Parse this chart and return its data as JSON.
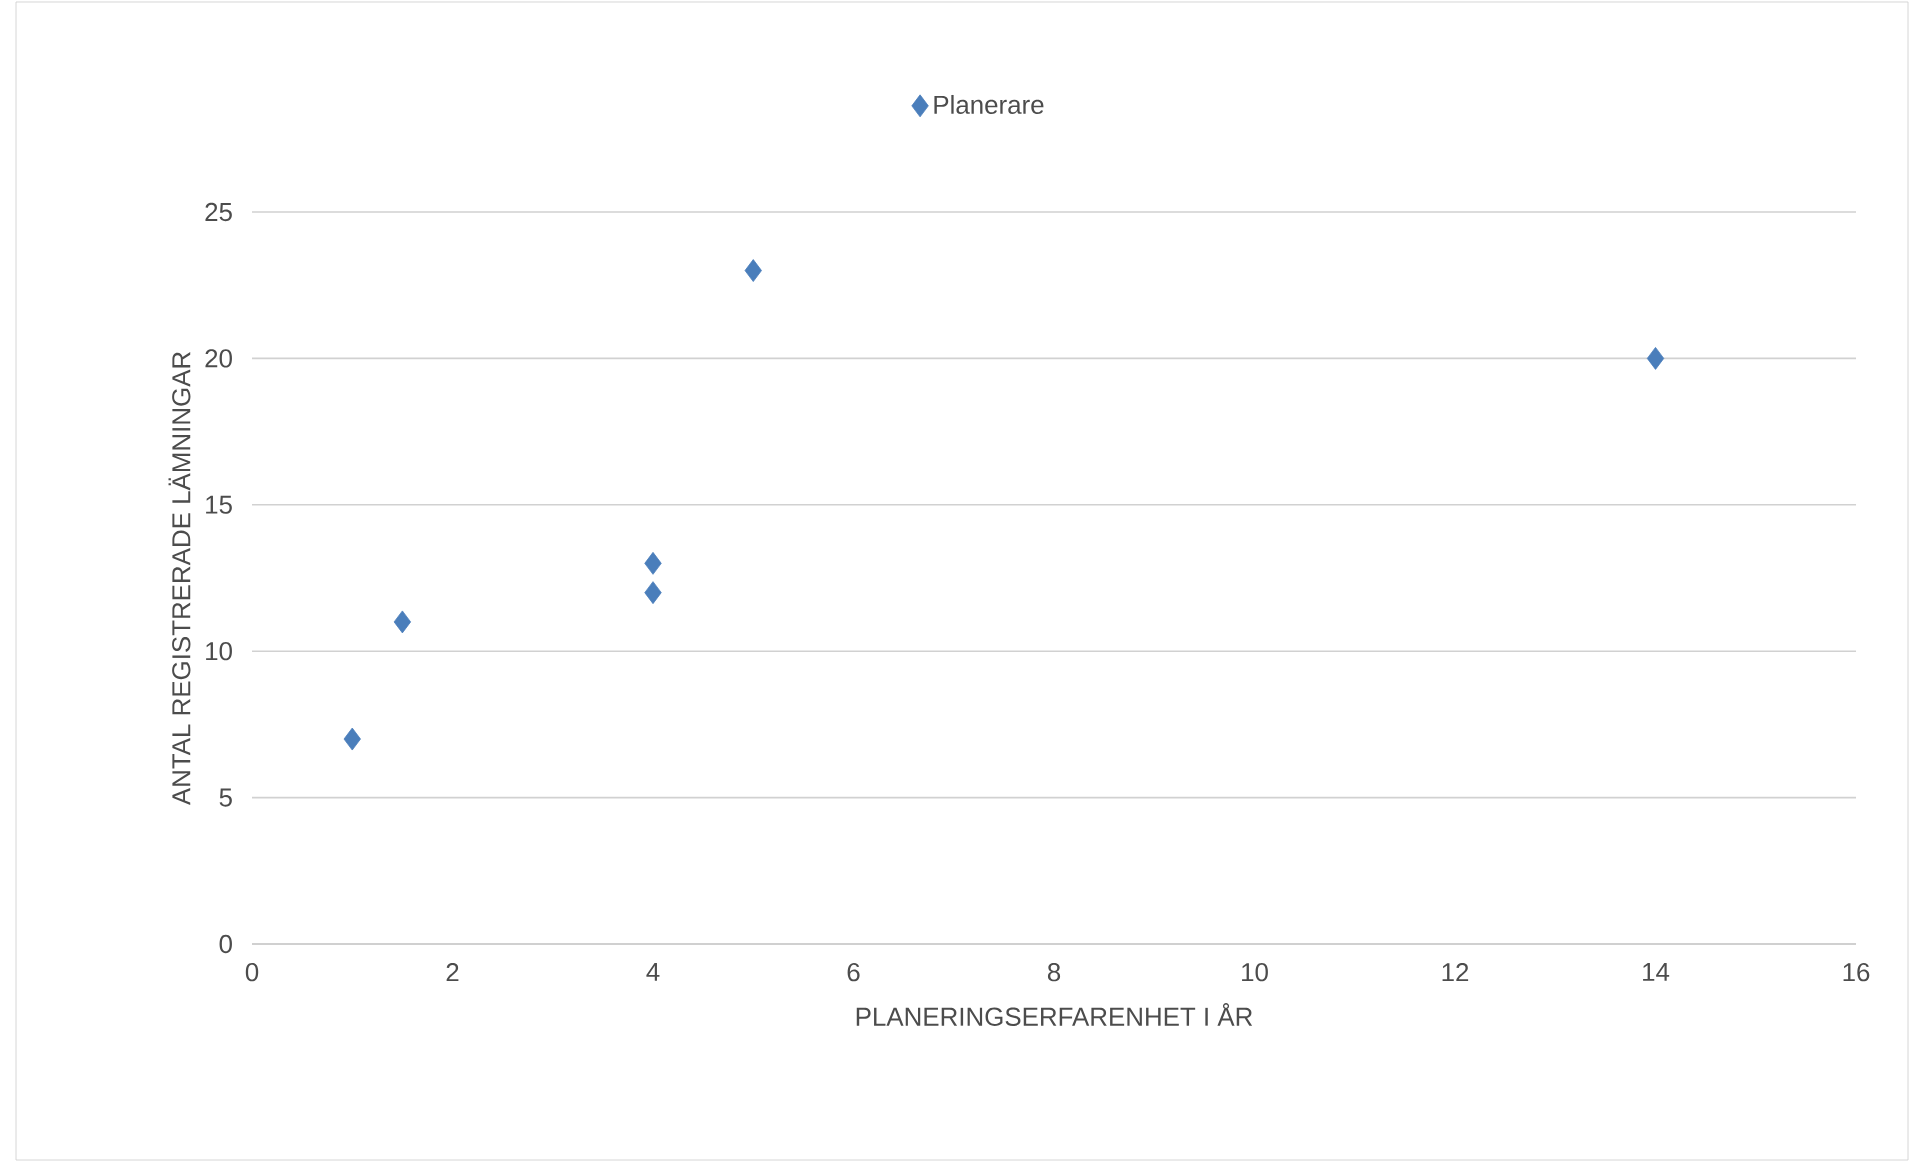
{
  "chart_data": {
    "type": "scatter",
    "xlabel": "PLANERINGSERFARENHET I ÅR",
    "ylabel": "ANTAL REGISTRERADE LÄMNINGAR",
    "x": [
      1,
      1.5,
      4,
      4,
      5,
      14
    ],
    "series": [
      {
        "name": "Planerare",
        "color": "#4a7ebb",
        "values": [
          7,
          11,
          13,
          12,
          23,
          20
        ]
      }
    ],
    "xlim": [
      0,
      16
    ],
    "xticks": [
      0,
      2,
      4,
      6,
      8,
      10,
      12,
      14,
      16
    ],
    "ylim": [
      0,
      25
    ],
    "yticks": [
      0,
      5,
      10,
      15,
      20,
      25
    ],
    "grid": "y",
    "legend": "top",
    "marker": "diamond"
  }
}
